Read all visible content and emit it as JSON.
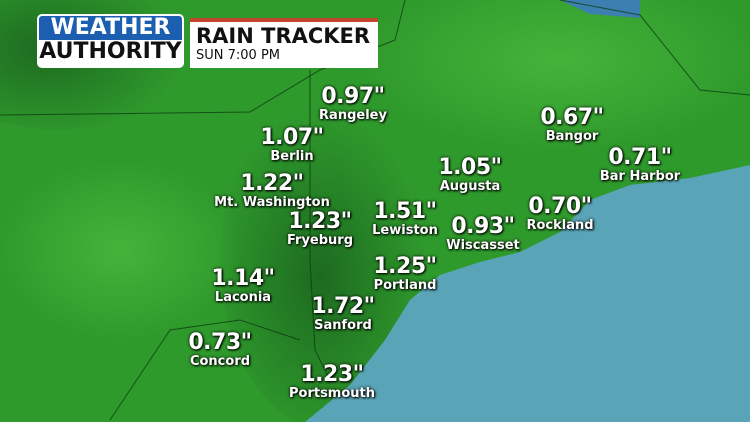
{
  "header": {
    "logo_line1": "WEATHER",
    "logo_line2": "AUTHORITY",
    "title": "RAIN TRACKER",
    "subtitle": "SUN  7:00 PM"
  },
  "colors": {
    "land": "#2f9a2c",
    "land_dark": "#1f6d22",
    "ocean": "#5aa4b8",
    "logo_blue": "#1c5fb0",
    "accent": "#c0452a"
  },
  "locations": [
    {
      "value": "0.97\"",
      "name": "Rangeley"
    },
    {
      "value": "1.07\"",
      "name": "Berlin"
    },
    {
      "value": "1.22\"",
      "name": "Mt. Washington"
    },
    {
      "value": "1.23\"",
      "name": "Fryeburg"
    },
    {
      "value": "1.51\"",
      "name": "Lewiston"
    },
    {
      "value": "1.05\"",
      "name": "Augusta"
    },
    {
      "value": "0.93\"",
      "name": "Wiscasset"
    },
    {
      "value": "0.70\"",
      "name": "Rockland"
    },
    {
      "value": "0.67\"",
      "name": "Bangor"
    },
    {
      "value": "0.71\"",
      "name": "Bar Harbor"
    },
    {
      "value": "1.25\"",
      "name": "Portland"
    },
    {
      "value": "1.14\"",
      "name": "Laconia"
    },
    {
      "value": "1.72\"",
      "name": "Sanford"
    },
    {
      "value": "0.73\"",
      "name": "Concord"
    },
    {
      "value": "1.23\"",
      "name": "Portsmouth"
    }
  ]
}
